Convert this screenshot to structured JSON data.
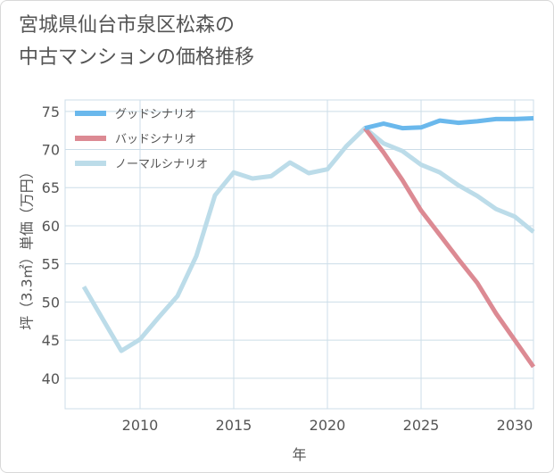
{
  "title_lines": [
    "宮城県仙台市泉区松森の",
    "中古マンションの価格推移"
  ],
  "colors": {
    "good": "#6ab8ec",
    "bad": "#dc8a93",
    "normal": "#bcdce9",
    "grid": "#ccdde8",
    "text": "#555555"
  },
  "chart_data": {
    "type": "line",
    "title": "宮城県仙台市泉区松森の中古マンションの価格推移",
    "xlabel": "年",
    "ylabel": "坪（3.3㎡）単価（万円）",
    "xlim": [
      2006,
      2031
    ],
    "ylim": [
      36,
      76.5
    ],
    "xticks": [
      2010,
      2015,
      2020,
      2025,
      2030
    ],
    "yticks": [
      40,
      45,
      50,
      55,
      60,
      65,
      70,
      75
    ],
    "grid": true,
    "legend_position": "top-left",
    "series": [
      {
        "key": "good",
        "name": "グッドシナリオ",
        "x": [
          2022,
          2023,
          2024,
          2025,
          2026,
          2027,
          2028,
          2029,
          2030,
          2031
        ],
        "y": [
          72.8,
          73.4,
          72.8,
          72.9,
          73.8,
          73.5,
          73.7,
          74.0,
          74.0,
          74.1
        ]
      },
      {
        "key": "bad",
        "name": "バッドシナリオ",
        "x": [
          2022,
          2023,
          2024,
          2025,
          2026,
          2027,
          2028,
          2029,
          2030,
          2031
        ],
        "y": [
          72.8,
          69.6,
          66.0,
          62.0,
          58.8,
          55.6,
          52.5,
          48.5,
          45.0,
          41.5
        ]
      },
      {
        "key": "normal",
        "name": "ノーマルシナリオ",
        "x": [
          2007,
          2008,
          2009,
          2010,
          2011,
          2012,
          2013,
          2014,
          2015,
          2016,
          2017,
          2018,
          2019,
          2020,
          2021,
          2022,
          2023,
          2024,
          2025,
          2026,
          2027,
          2028,
          2029,
          2030,
          2031
        ],
        "y": [
          52.0,
          47.8,
          43.6,
          45.1,
          48.0,
          50.8,
          56.0,
          64.0,
          67.0,
          66.2,
          66.5,
          68.3,
          66.9,
          67.4,
          70.4,
          72.8,
          70.8,
          69.8,
          68.0,
          67.0,
          65.3,
          63.9,
          62.2,
          61.2,
          59.2
        ]
      }
    ]
  }
}
